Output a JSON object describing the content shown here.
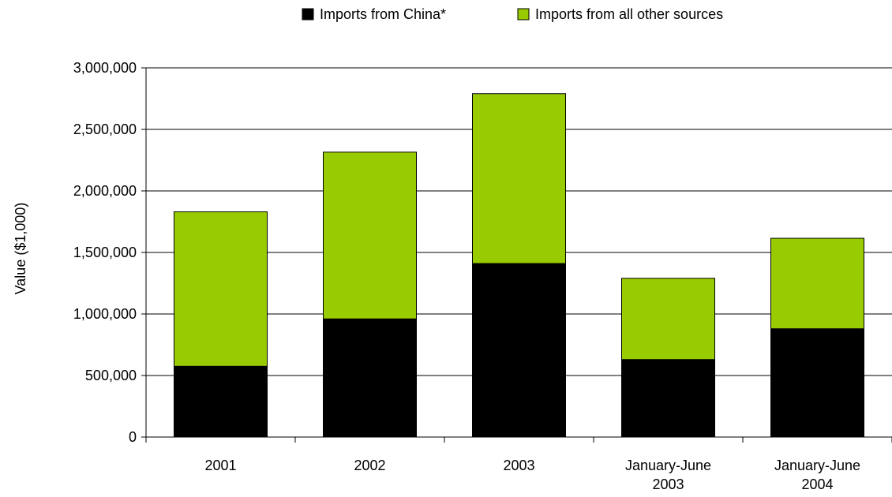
{
  "chart_data": {
    "type": "bar",
    "stacked": true,
    "categories": [
      [
        "2001"
      ],
      [
        "2002"
      ],
      [
        "2003"
      ],
      [
        "January-June",
        "2003"
      ],
      [
        "January-June",
        "2004"
      ]
    ],
    "series": [
      {
        "name": "Imports from China*",
        "color": "#000000",
        "values": [
          575000,
          960000,
          1410000,
          630000,
          880000
        ]
      },
      {
        "name": "Imports from all other sources",
        "color": "#99cc00",
        "values": [
          1255000,
          1355000,
          1380000,
          660000,
          735000
        ]
      }
    ],
    "title": "",
    "xlabel": "",
    "ylabel": "Value ($1,000)",
    "ylim": [
      0,
      3000000
    ],
    "yticks": [
      0,
      500000,
      1000000,
      1500000,
      2000000,
      2500000,
      3000000
    ],
    "ytick_labels": [
      "0",
      "500,000",
      "1,000,000",
      "1,500,000",
      "2,000,000",
      "2,500,000",
      "3,000,000"
    ],
    "grid": true,
    "legend_position": "top-center"
  }
}
